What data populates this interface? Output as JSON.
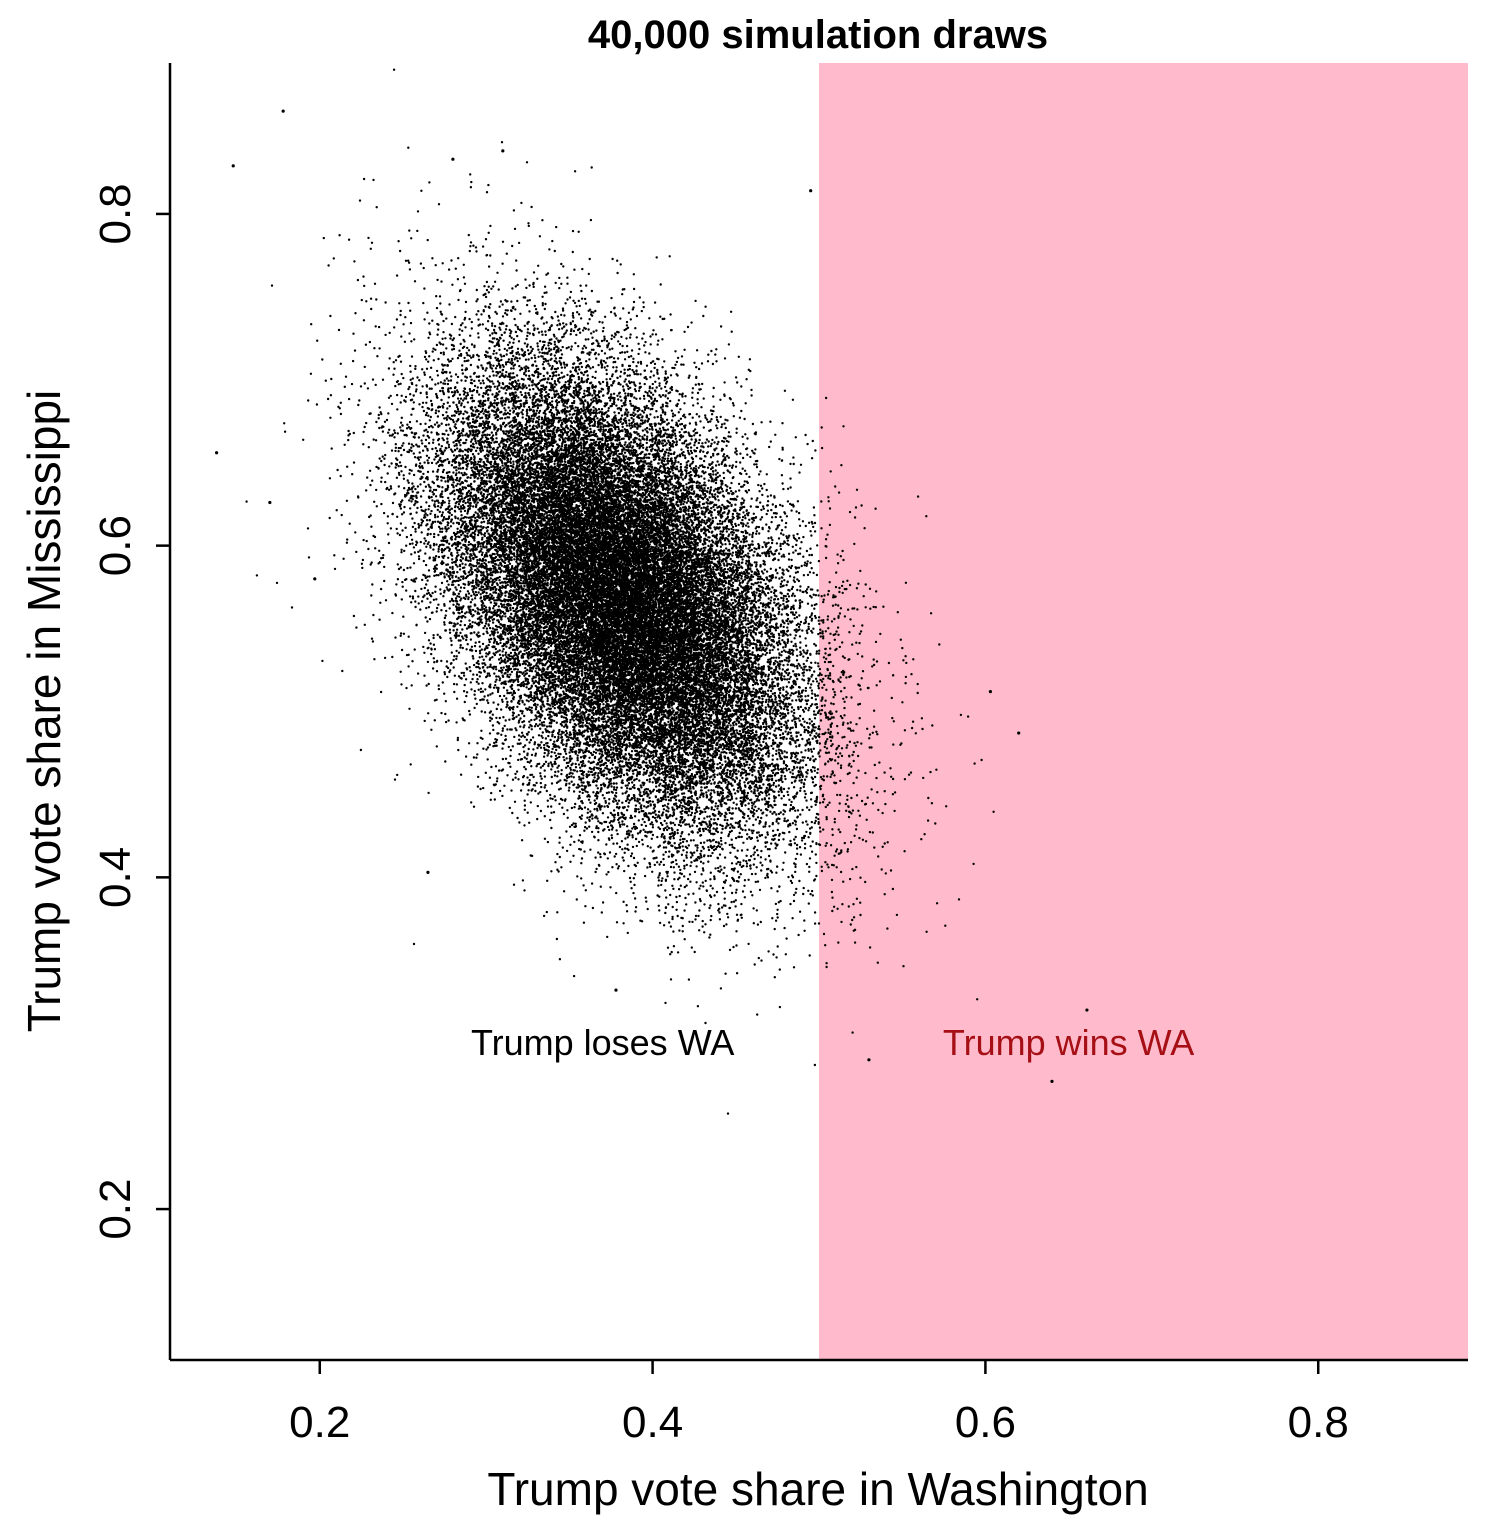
{
  "chart_data": {
    "type": "scatter",
    "title": "40,000 simulation draws",
    "xlabel": "Trump vote share in Washington",
    "ylabel": "Trump vote share in Mississippi",
    "xlim": [
      0.11,
      0.89
    ],
    "ylim": [
      0.109,
      0.891
    ],
    "xticks": [
      {
        "value": 0.2,
        "label": "0.2"
      },
      {
        "value": 0.4,
        "label": "0.4"
      },
      {
        "value": 0.6,
        "label": "0.6"
      },
      {
        "value": 0.8,
        "label": "0.8"
      }
    ],
    "yticks": [
      {
        "value": 0.2,
        "label": "0.2"
      },
      {
        "value": 0.4,
        "label": "0.4"
      },
      {
        "value": 0.6,
        "label": "0.6"
      },
      {
        "value": 0.8,
        "label": "0.8"
      }
    ],
    "grid": false,
    "point_color": "#000000",
    "n_draws": 40000,
    "distribution": {
      "mean_x": 0.38,
      "mean_y": 0.57,
      "sd_x": 0.054,
      "sd_y": 0.07,
      "correlation": -0.45
    },
    "shaded_region": {
      "x_from": 0.5,
      "x_to": 0.89,
      "color": "#FFBBCB"
    },
    "annotations": [
      {
        "text": "Trump loses WA",
        "x": 0.37,
        "y": 0.3,
        "color": "#000000"
      },
      {
        "text": "Trump wins WA",
        "x": 0.65,
        "y": 0.3,
        "color": "#A50F15"
      }
    ],
    "outliers": [
      {
        "x": 0.178,
        "y": 0.862
      },
      {
        "x": 0.148,
        "y": 0.829
      },
      {
        "x": 0.28,
        "y": 0.833
      },
      {
        "x": 0.31,
        "y": 0.838
      },
      {
        "x": 0.495,
        "y": 0.814
      },
      {
        "x": 0.138,
        "y": 0.656
      },
      {
        "x": 0.17,
        "y": 0.626
      },
      {
        "x": 0.197,
        "y": 0.58
      },
      {
        "x": 0.265,
        "y": 0.403
      },
      {
        "x": 0.603,
        "y": 0.512
      },
      {
        "x": 0.62,
        "y": 0.487
      },
      {
        "x": 0.64,
        "y": 0.277
      },
      {
        "x": 0.661,
        "y": 0.32
      },
      {
        "x": 0.53,
        "y": 0.29
      },
      {
        "x": 0.378,
        "y": 0.332
      }
    ]
  }
}
